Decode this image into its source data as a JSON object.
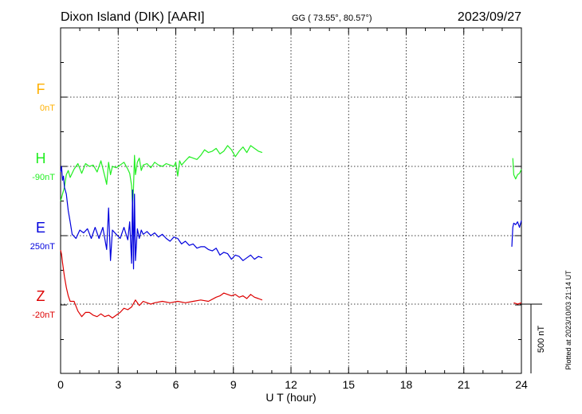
{
  "header": {
    "station": "Dixon Island (DIK)  [AARI]",
    "coords": "GG ( 73.55°,  80.57°)",
    "date": "2023/09/27"
  },
  "footer": {
    "plotted": "Plotted at 2023/10/03 21:14 UT"
  },
  "chart_data": {
    "type": "line",
    "title": "",
    "xlabel": "U T (hour)",
    "ylabel": "",
    "xlim": [
      0,
      24
    ],
    "x_ticks": [
      "0",
      "3",
      "6",
      "9",
      "12",
      "15",
      "18",
      "21",
      "24"
    ],
    "grid": true,
    "scale_bar": {
      "label": "500 nT",
      "value_nT": 500
    },
    "colors": {
      "F": "#ffb000",
      "H": "#22ee22",
      "E": "#0000dd",
      "Z": "#dd0000"
    },
    "series": [
      {
        "name": "F",
        "baseline": "0nT",
        "x": [],
        "y": []
      },
      {
        "name": "H",
        "baseline": "-90nT",
        "x": [
          0.0,
          0.1,
          0.2,
          0.3,
          0.4,
          0.5,
          0.7,
          0.9,
          1.1,
          1.3,
          1.5,
          1.7,
          1.9,
          2.1,
          2.3,
          2.4,
          2.5,
          2.6,
          2.7,
          2.9,
          3.1,
          3.3,
          3.5,
          3.6,
          3.7,
          3.75,
          3.8,
          3.85,
          3.9,
          4.0,
          4.1,
          4.2,
          4.3,
          4.5,
          4.7,
          4.9,
          5.1,
          5.3,
          5.5,
          5.7,
          5.9,
          6.0,
          6.1,
          6.2,
          6.3,
          6.5,
          6.7,
          6.9,
          7.1,
          7.3,
          7.5,
          7.7,
          7.9,
          8.1,
          8.3,
          8.5,
          8.7,
          8.9,
          9.1,
          9.3,
          9.5,
          9.7,
          9.9,
          10.1,
          10.3,
          10.5,
          null,
          23.55,
          23.6,
          23.7,
          23.8,
          23.9,
          24.0
        ],
        "y": [
          -250,
          -200,
          -150,
          -60,
          -30,
          -80,
          -20,
          20,
          -50,
          20,
          0,
          10,
          -40,
          40,
          -70,
          -130,
          30,
          -60,
          0,
          -10,
          10,
          30,
          -20,
          -50,
          -140,
          -290,
          -150,
          80,
          -60,
          30,
          60,
          -30,
          10,
          20,
          -10,
          30,
          10,
          0,
          20,
          10,
          0,
          30,
          -70,
          40,
          10,
          40,
          70,
          60,
          50,
          80,
          120,
          100,
          110,
          130,
          90,
          110,
          150,
          120,
          70,
          110,
          140,
          100,
          150,
          130,
          110,
          100,
          null,
          60,
          -60,
          -90,
          -60,
          -50,
          -20
        ]
      },
      {
        "name": "E",
        "baseline": "250nT",
        "x": [
          0.0,
          0.05,
          0.1,
          0.15,
          0.2,
          0.3,
          0.4,
          0.5,
          0.6,
          0.8,
          1.0,
          1.2,
          1.4,
          1.6,
          1.8,
          2.0,
          2.2,
          2.4,
          2.5,
          2.6,
          2.7,
          2.9,
          3.1,
          3.3,
          3.5,
          3.6,
          3.7,
          3.75,
          3.8,
          3.85,
          3.9,
          4.0,
          4.1,
          4.2,
          4.3,
          4.5,
          4.7,
          4.9,
          5.1,
          5.3,
          5.5,
          5.7,
          5.9,
          6.1,
          6.3,
          6.5,
          6.7,
          6.9,
          7.1,
          7.3,
          7.5,
          7.7,
          7.9,
          8.1,
          8.3,
          8.5,
          8.7,
          8.9,
          9.1,
          9.3,
          9.5,
          9.7,
          9.9,
          10.1,
          10.3,
          10.5,
          null,
          23.5,
          23.55,
          23.6,
          23.7,
          23.8,
          23.9,
          24.0
        ],
        "y": [
          460,
          500,
          400,
          430,
          350,
          300,
          180,
          100,
          10,
          -20,
          40,
          20,
          50,
          -20,
          60,
          -20,
          60,
          -100,
          200,
          -180,
          40,
          10,
          -20,
          60,
          -30,
          100,
          -200,
          330,
          -240,
          300,
          -180,
          50,
          -20,
          40,
          10,
          30,
          0,
          20,
          -10,
          10,
          -20,
          -40,
          -10,
          -20,
          -60,
          -40,
          -70,
          -60,
          -90,
          -80,
          -80,
          -100,
          -110,
          -90,
          -140,
          -120,
          -130,
          -170,
          -140,
          -150,
          -180,
          -160,
          -140,
          -170,
          -150,
          -160,
          null,
          -80,
          60,
          90,
          80,
          100,
          60,
          110
        ]
      },
      {
        "name": "Z",
        "baseline": "-20nT",
        "x": [
          0.0,
          0.05,
          0.1,
          0.2,
          0.3,
          0.4,
          0.5,
          0.7,
          0.9,
          1.1,
          1.3,
          1.5,
          1.7,
          1.9,
          2.1,
          2.3,
          2.5,
          2.7,
          2.9,
          3.1,
          3.3,
          3.5,
          3.7,
          3.9,
          4.1,
          4.3,
          4.5,
          4.7,
          4.9,
          5.3,
          5.7,
          6.1,
          6.5,
          6.9,
          7.3,
          7.7,
          8.1,
          8.3,
          8.5,
          8.7,
          8.9,
          9.1,
          9.3,
          9.5,
          9.7,
          9.9,
          10.1,
          10.3,
          10.5,
          null,
          23.6,
          23.8,
          24.0
        ],
        "y": [
          390,
          360,
          300,
          200,
          120,
          60,
          20,
          20,
          -50,
          -90,
          -60,
          -60,
          -80,
          -90,
          -70,
          -90,
          -80,
          -100,
          -80,
          -60,
          -30,
          -40,
          -20,
          30,
          -10,
          20,
          10,
          0,
          10,
          20,
          10,
          20,
          10,
          20,
          30,
          20,
          50,
          60,
          80,
          70,
          60,
          70,
          50,
          60,
          40,
          70,
          50,
          40,
          30,
          null,
          10,
          0,
          10
        ]
      }
    ]
  }
}
